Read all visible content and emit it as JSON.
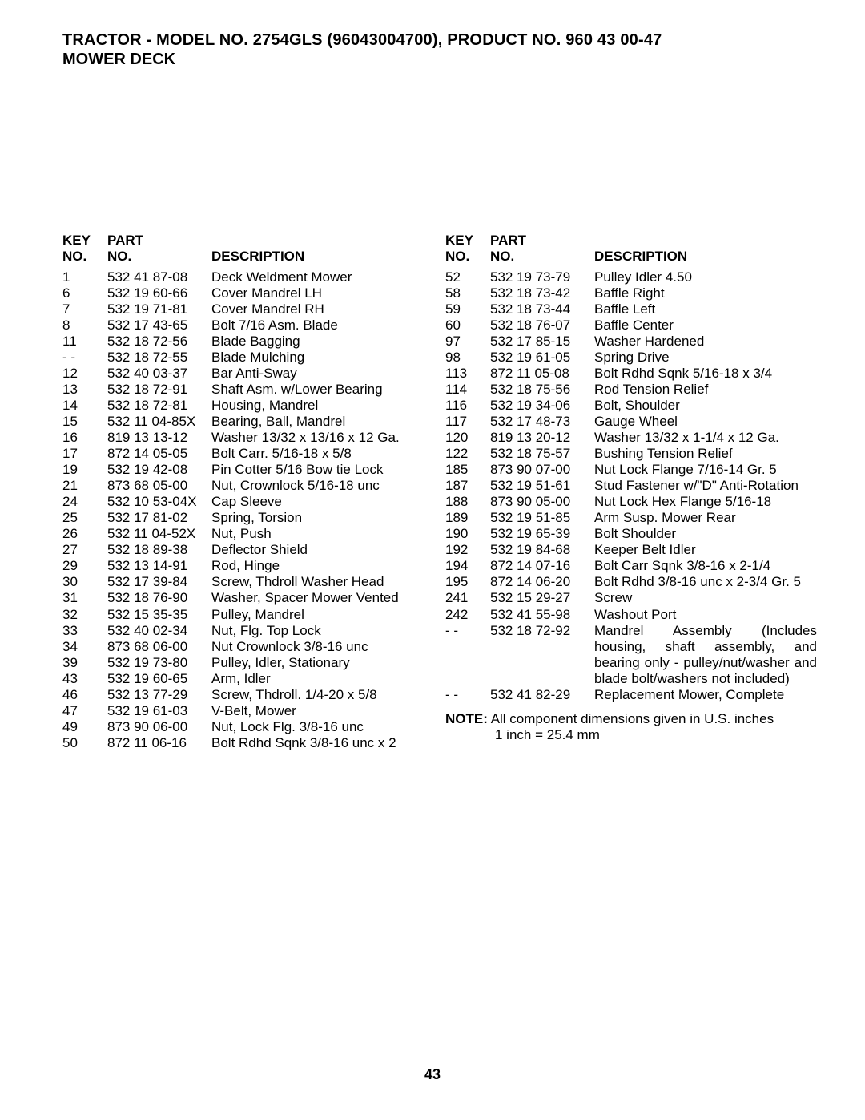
{
  "header": {
    "title": "TRACTOR - MODEL NO. 2754GLS (96043004700), PRODUCT NO. 960 43 00-47",
    "subtitle": "MOWER DECK"
  },
  "columns": {
    "headers": {
      "key1": "KEY",
      "key2": "NO.",
      "part1": "PART",
      "part2": "NO.",
      "desc": "DESCRIPTION"
    }
  },
  "left": [
    {
      "key": "1",
      "part": "532 41 87-08",
      "desc": "Deck Weldment Mower"
    },
    {
      "key": "6",
      "part": "532 19 60-66",
      "desc": "Cover Mandrel LH"
    },
    {
      "key": "7",
      "part": "532 19 71-81",
      "desc": "Cover Mandrel RH"
    },
    {
      "key": "8",
      "part": "532 17 43-65",
      "desc": "Bolt 7/16 Asm. Blade"
    },
    {
      "key": "11",
      "part": "532 18 72-56",
      "desc": "Blade Bagging"
    },
    {
      "key": "- -",
      "part": "532 18 72-55",
      "desc": "Blade Mulching"
    },
    {
      "key": "12",
      "part": "532 40 03-37",
      "desc": "Bar Anti-Sway"
    },
    {
      "key": "13",
      "part": "532 18 72-91",
      "desc": "Shaft Asm. w/Lower Bearing"
    },
    {
      "key": "14",
      "part": "532 18 72-81",
      "desc": "Housing, Mandrel"
    },
    {
      "key": "15",
      "part": "532 11 04-85X",
      "desc": "Bearing, Ball, Mandrel"
    },
    {
      "key": "16",
      "part": "819 13 13-12",
      "desc": "Washer 13/32 x 13/16 x 12 Ga."
    },
    {
      "key": "17",
      "part": "872 14 05-05",
      "desc": "Bolt Carr. 5/16-18 x 5/8"
    },
    {
      "key": "19",
      "part": "532 19 42-08",
      "desc": "Pin Cotter 5/16 Bow tie Lock"
    },
    {
      "key": "21",
      "part": "873 68 05-00",
      "desc": "Nut, Crownlock  5/16-18 unc"
    },
    {
      "key": "24",
      "part": "532 10 53-04X",
      "desc": "Cap Sleeve"
    },
    {
      "key": "25",
      "part": "532 17 81-02",
      "desc": "Spring, Torsion"
    },
    {
      "key": "26",
      "part": "532 11 04-52X",
      "desc": "Nut, Push"
    },
    {
      "key": "27",
      "part": "532 18 89-38",
      "desc": "Deflector Shield"
    },
    {
      "key": "29",
      "part": "532 13 14-91",
      "desc": "Rod, Hinge"
    },
    {
      "key": "30",
      "part": "532 17 39-84",
      "desc": "Screw, Thdroll Washer Head"
    },
    {
      "key": "31",
      "part": "532 18 76-90",
      "desc": "Washer, Spacer Mower Vented"
    },
    {
      "key": "32",
      "part": "532 15 35-35",
      "desc": "Pulley, Mandrel"
    },
    {
      "key": "33",
      "part": "532 40 02-34",
      "desc": "Nut, Flg. Top Lock"
    },
    {
      "key": "34",
      "part": "873 68 06-00",
      "desc": "Nut Crownlock 3/8-16 unc"
    },
    {
      "key": "39",
      "part": "532 19 73-80",
      "desc": "Pulley, Idler, Stationary"
    },
    {
      "key": "43",
      "part": "532 19 60-65",
      "desc": "Arm, Idler"
    },
    {
      "key": "46",
      "part": "532 13 77-29",
      "desc": "Screw, Thdroll. 1/4-20 x 5/8"
    },
    {
      "key": "47",
      "part": "532 19 61-03",
      "desc": "V-Belt, Mower"
    },
    {
      "key": "49",
      "part": "873 90 06-00",
      "desc": "Nut, Lock  Flg. 3/8-16 unc"
    },
    {
      "key": "50",
      "part": "872 11 06-16",
      "desc": "Bolt Rdhd Sqnk 3/8-16 unc x 2"
    }
  ],
  "right": [
    {
      "key": "52",
      "part": "532 19 73-79",
      "desc": "Pulley Idler 4.50"
    },
    {
      "key": "58",
      "part": "532 18 73-42",
      "desc": "Baffle Right"
    },
    {
      "key": "59",
      "part": "532 18 73-44",
      "desc": "Baffle Left"
    },
    {
      "key": "60",
      "part": "532 18 76-07",
      "desc": "Baffle Center"
    },
    {
      "key": "97",
      "part": "532 17 85-15",
      "desc": "Washer Hardened"
    },
    {
      "key": "98",
      "part": "532 19 61-05",
      "desc": "Spring Drive"
    },
    {
      "key": "113",
      "part": "872 11 05-08",
      "desc": "Bolt Rdhd Sqnk 5/16-18 x 3/4"
    },
    {
      "key": "114",
      "part": "532 18 75-56",
      "desc": "Rod Tension  Relief"
    },
    {
      "key": "116",
      "part": "532 19 34-06",
      "desc": "Bolt, Shoulder"
    },
    {
      "key": "117",
      "part": "532 17 48-73",
      "desc": "Gauge Wheel"
    },
    {
      "key": "120",
      "part": "819 13 20-12",
      "desc": "Washer 13/32 x 1-1/4 x 12 Ga."
    },
    {
      "key": "122",
      "part": "532 18 75-57",
      "desc": "Bushing Tension Relief"
    },
    {
      "key": "185",
      "part": "873 90 07-00",
      "desc": "Nut Lock Flange 7/16-14 Gr. 5"
    },
    {
      "key": "187",
      "part": "532 19 51-61",
      "desc": "Stud Fastener w/\"D\" Anti-Rotation"
    },
    {
      "key": "188",
      "part": "873 90 05-00",
      "desc": "Nut Lock Hex Flange 5/16-18"
    },
    {
      "key": "189",
      "part": "532 19 51-85",
      "desc": "Arm Susp. Mower Rear"
    },
    {
      "key": "190",
      "part": "532 19 65-39",
      "desc": "Bolt Shoulder"
    },
    {
      "key": "192",
      "part": "532 19 84-68",
      "desc": "Keeper Belt Idler"
    },
    {
      "key": "194",
      "part": "872 14 07-16",
      "desc": "Bolt Carr Sqnk 3/8-16 x 2-1/4"
    },
    {
      "key": "195",
      "part": "872 14 06-20",
      "desc": "Bolt Rdhd 3/8-16 unc x 2-3/4 Gr. 5"
    },
    {
      "key": "241",
      "part": "532 15 29-27",
      "desc": "Screw"
    },
    {
      "key": "242",
      "part": "532 41 55-98",
      "desc": "Washout Port"
    },
    {
      "key": "- -",
      "part": "532 18 72-92",
      "desc": "Mandrel Assembly (Includes housing, shaft assembly, and bearing only - pulley/nut/washer and blade bolt/washers not included)",
      "justify": true,
      "extraLines": 3
    },
    {
      "key": "- -",
      "part": "532 41 82-29",
      "desc": "Replacement Mower, Complete"
    }
  ],
  "note": {
    "label": "NOTE:",
    "line1": "All component dimensions given in U.S. inches",
    "line2": "1 inch = 25.4 mm"
  },
  "page_number": "43"
}
